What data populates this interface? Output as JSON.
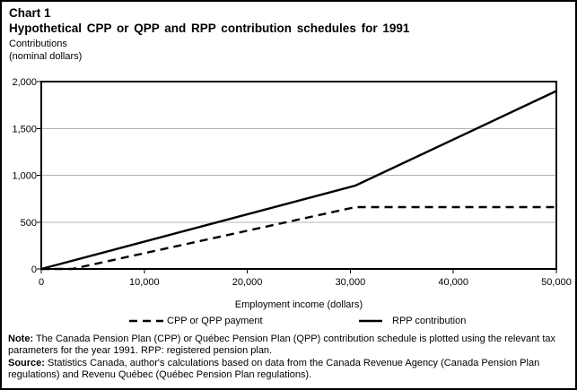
{
  "header": {
    "chart_label": "Chart 1",
    "title": "Hypothetical CPP or QPP and RPP contribution schedules for 1991"
  },
  "axes": {
    "y_unit_line1": "Contributions",
    "y_unit_line2": "(nominal dollars)",
    "x_title": "Employment income (dollars)"
  },
  "chart_data": {
    "type": "line",
    "title": "Hypothetical CPP or QPP and RPP contribution schedules for 1991",
    "xlabel": "Employment income (dollars)",
    "ylabel": "Contributions (nominal dollars)",
    "xlim": [
      0,
      50000
    ],
    "ylim": [
      0,
      2000
    ],
    "x_ticks": [
      0,
      10000,
      20000,
      30000,
      40000,
      50000
    ],
    "x_tick_labels": [
      "0",
      "10,000",
      "20,000",
      "30,000",
      "40,000",
      "50,000"
    ],
    "y_ticks": [
      0,
      500,
      1000,
      1500,
      2000
    ],
    "y_tick_labels": [
      "0",
      "500",
      "1,000",
      "1,500",
      "2,000"
    ],
    "grid": "horizontal gridlines at 500, 1,000, 1,500",
    "legend_position": "bottom",
    "series": [
      {
        "name": "CPP or QPP payment",
        "line_style": "dashed",
        "color": "#000000",
        "points": [
          [
            0,
            0
          ],
          [
            3000,
            0
          ],
          [
            30500,
            660
          ],
          [
            50000,
            660
          ]
        ]
      },
      {
        "name": "RPP contribution",
        "line_style": "solid",
        "color": "#000000",
        "points": [
          [
            0,
            0
          ],
          [
            30500,
            890
          ],
          [
            50000,
            1900
          ]
        ]
      }
    ]
  },
  "footer": {
    "note_label": "Note:",
    "note_text": " The Canada Pension Plan (CPP) or Québec Pension Plan (QPP) contribution schedule is plotted using the relevant tax parameters for the year 1991. RPP: registered pension plan.",
    "source_label": "Source:",
    "source_text": " Statistics Canada, author's calculations based on data from the Canada Revenue Agency (Canada Pension Plan regulations) and Revenu Québec (Québec Pension Plan regulations)."
  },
  "colors": {
    "background": "#ffffff",
    "frame": "#000000",
    "gridline": "#b3b3b3",
    "line": "#000000"
  }
}
